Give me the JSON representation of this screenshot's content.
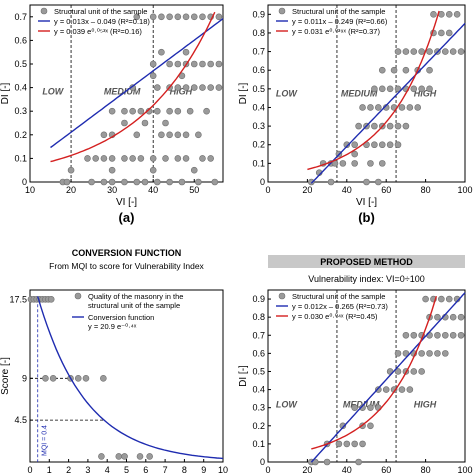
{
  "panels": [
    {
      "id": "a",
      "panel_label": "(a)",
      "xlabel": "VI [-]",
      "ylabel": "DI [-]",
      "xlim": [
        10,
        57
      ],
      "ylim": [
        0,
        0.75
      ],
      "xticks": [
        "10",
        "20",
        "30",
        "40",
        "50"
      ],
      "yticks": [
        "0",
        "0.1",
        "0.2",
        "0.3",
        "0.4",
        "0.5",
        "0.6",
        "0.7"
      ],
      "vlines": [
        20,
        40
      ],
      "zones": [
        {
          "label": "LOW",
          "x": 13,
          "y": 0.37
        },
        {
          "label": "MEDIUM",
          "x": 28,
          "y": 0.37
        },
        {
          "label": "HIGH",
          "x": 44,
          "y": 0.37
        }
      ],
      "legend": {
        "scatter": "Structural unit of the sample",
        "linear": "y = 0.013x – 0.049 (R²=0.18)",
        "exp": "y = 0.039 e⁰·⁰⁵³ˣ (R²=0.16)"
      },
      "linear": {
        "m": 0.013,
        "b": -0.049,
        "x0": 15,
        "x1": 57
      },
      "exp": {
        "a": 0.039,
        "k": 0.053,
        "x0": 15,
        "x1": 55
      },
      "points": [
        [
          18,
          0
        ],
        [
          19,
          0
        ],
        [
          25,
          0
        ],
        [
          28,
          0
        ],
        [
          30,
          0
        ],
        [
          33,
          0
        ],
        [
          36,
          0
        ],
        [
          38,
          0
        ],
        [
          41,
          0
        ],
        [
          44,
          0
        ],
        [
          47,
          0
        ],
        [
          51,
          0
        ],
        [
          55,
          0
        ],
        [
          20,
          0.05
        ],
        [
          30,
          0.05
        ],
        [
          40,
          0.05
        ],
        [
          50,
          0.05
        ],
        [
          24,
          0.1
        ],
        [
          26,
          0.1
        ],
        [
          28,
          0.1
        ],
        [
          30,
          0.1
        ],
        [
          33,
          0.1
        ],
        [
          35,
          0.1
        ],
        [
          37,
          0.1
        ],
        [
          40,
          0.1
        ],
        [
          43,
          0.1
        ],
        [
          46,
          0.1
        ],
        [
          48,
          0.1
        ],
        [
          52,
          0.1
        ],
        [
          54,
          0.1
        ],
        [
          28,
          0.2
        ],
        [
          30,
          0.2
        ],
        [
          36,
          0.2
        ],
        [
          42,
          0.2
        ],
        [
          44,
          0.2
        ],
        [
          46,
          0.2
        ],
        [
          48,
          0.2
        ],
        [
          51,
          0.2
        ],
        [
          33,
          0.25
        ],
        [
          38,
          0.25
        ],
        [
          43,
          0.25
        ],
        [
          30,
          0.3
        ],
        [
          33,
          0.3
        ],
        [
          35,
          0.3
        ],
        [
          37,
          0.3
        ],
        [
          39,
          0.3
        ],
        [
          41,
          0.3
        ],
        [
          44,
          0.3
        ],
        [
          46,
          0.3
        ],
        [
          49,
          0.3
        ],
        [
          53,
          0.3
        ],
        [
          35,
          0.4
        ],
        [
          41,
          0.4
        ],
        [
          44,
          0.4
        ],
        [
          46,
          0.4
        ],
        [
          48,
          0.4
        ],
        [
          50,
          0.4
        ],
        [
          52,
          0.4
        ],
        [
          54,
          0.4
        ],
        [
          56,
          0.4
        ],
        [
          40,
          0.45
        ],
        [
          47,
          0.45
        ],
        [
          40,
          0.5
        ],
        [
          44,
          0.5
        ],
        [
          46,
          0.5
        ],
        [
          48,
          0.5
        ],
        [
          50,
          0.5
        ],
        [
          52,
          0.5
        ],
        [
          54,
          0.5
        ],
        [
          56,
          0.5
        ],
        [
          42,
          0.55
        ],
        [
          48,
          0.55
        ],
        [
          36,
          0.7
        ],
        [
          40,
          0.7
        ],
        [
          42,
          0.7
        ],
        [
          44,
          0.7
        ],
        [
          46,
          0.7
        ],
        [
          48,
          0.7
        ],
        [
          50,
          0.7
        ],
        [
          52,
          0.7
        ],
        [
          54,
          0.7
        ],
        [
          56,
          0.7
        ]
      ]
    },
    {
      "id": "b",
      "panel_label": "(b)",
      "xlabel": "VI [-]",
      "ylabel": "DI [-]",
      "xlim": [
        0,
        100
      ],
      "ylim": [
        0,
        0.95
      ],
      "xticks": [
        "0",
        "20",
        "40",
        "60",
        "80",
        "100"
      ],
      "yticks": [
        "0",
        "0.1",
        "0.2",
        "0.3",
        "0.4",
        "0.5",
        "0.6",
        "0.7",
        "0.8",
        "0.9"
      ],
      "vlines": [
        35,
        65
      ],
      "zones": [
        {
          "label": "LOW",
          "x": 4,
          "y": 0.46
        },
        {
          "label": "MEDIUM",
          "x": 37,
          "y": 0.46
        },
        {
          "label": "HIGH",
          "x": 74,
          "y": 0.46
        }
      ],
      "legend": {
        "scatter": "Structural unit of the sample",
        "linear": "y = 0.011x – 0.249 (R²=0.66)",
        "exp": "y = 0.031 e⁰·⁰³⁹ˣ (R²=0.37)"
      },
      "linear": {
        "m": 0.011,
        "b": -0.249,
        "x0": 22,
        "x1": 100
      },
      "exp": {
        "a": 0.031,
        "k": 0.039,
        "x0": 20,
        "x1": 88
      },
      "points": [
        [
          22,
          0
        ],
        [
          32,
          0
        ],
        [
          50,
          0
        ],
        [
          56,
          0
        ],
        [
          26,
          0.05
        ],
        [
          28,
          0.1
        ],
        [
          32,
          0.1
        ],
        [
          34,
          0.1
        ],
        [
          38,
          0.1
        ],
        [
          44,
          0.1
        ],
        [
          52,
          0.1
        ],
        [
          58,
          0.1
        ],
        [
          36,
          0.15
        ],
        [
          44,
          0.15
        ],
        [
          40,
          0.2
        ],
        [
          44,
          0.2
        ],
        [
          50,
          0.2
        ],
        [
          54,
          0.2
        ],
        [
          58,
          0.2
        ],
        [
          62,
          0.2
        ],
        [
          66,
          0.2
        ],
        [
          46,
          0.3
        ],
        [
          50,
          0.3
        ],
        [
          54,
          0.3
        ],
        [
          58,
          0.3
        ],
        [
          62,
          0.3
        ],
        [
          66,
          0.3
        ],
        [
          70,
          0.3
        ],
        [
          48,
          0.4
        ],
        [
          52,
          0.4
        ],
        [
          56,
          0.4
        ],
        [
          60,
          0.4
        ],
        [
          64,
          0.4
        ],
        [
          68,
          0.4
        ],
        [
          72,
          0.4
        ],
        [
          76,
          0.4
        ],
        [
          54,
          0.5
        ],
        [
          58,
          0.5
        ],
        [
          62,
          0.5
        ],
        [
          66,
          0.5
        ],
        [
          70,
          0.5
        ],
        [
          74,
          0.5
        ],
        [
          78,
          0.5
        ],
        [
          82,
          0.5
        ],
        [
          58,
          0.6
        ],
        [
          64,
          0.6
        ],
        [
          70,
          0.6
        ],
        [
          76,
          0.6
        ],
        [
          82,
          0.6
        ],
        [
          66,
          0.7
        ],
        [
          70,
          0.7
        ],
        [
          74,
          0.7
        ],
        [
          78,
          0.7
        ],
        [
          82,
          0.7
        ],
        [
          86,
          0.7
        ],
        [
          90,
          0.7
        ],
        [
          94,
          0.7
        ],
        [
          98,
          0.7
        ],
        [
          84,
          0.8
        ],
        [
          88,
          0.8
        ],
        [
          92,
          0.8
        ],
        [
          84,
          0.9
        ],
        [
          88,
          0.9
        ],
        [
          92,
          0.9
        ],
        [
          96,
          0.9
        ]
      ]
    },
    {
      "id": "c",
      "title": "CONVERSION FUNCTION",
      "subtitle": "From MQI to score for Vulnerability Index",
      "xlabel": "",
      "ylabel": "Score [-]",
      "xlim": [
        0,
        10
      ],
      "ylim": [
        0,
        18.5
      ],
      "xticks": [
        "0",
        "1",
        "2",
        "3",
        "4",
        "5",
        "6",
        "7",
        "8",
        "9",
        "10"
      ],
      "yticks": [
        {
          "v": 4.5,
          "t": "4.5"
        },
        {
          "v": 9,
          "t": "9"
        },
        {
          "v": 17.5,
          "t": "17.5"
        }
      ],
      "hlines": [
        4.5,
        9,
        17.5
      ],
      "vline": 0.4,
      "vline_label": "MQI = 0.4",
      "legend": {
        "scatter": "Quality of the masonry in the structural unit of the sample",
        "curve_name": "Conversion function",
        "curve_eq": "y = 20.9 e⁻⁰·⁴ˣ"
      },
      "curve": {
        "a": 20.9,
        "k": -0.4,
        "x0": 0.4,
        "x1": 10
      },
      "points": [
        [
          0.05,
          17.5
        ],
        [
          0.2,
          17.5
        ],
        [
          0.35,
          17.5
        ],
        [
          0.5,
          17.5
        ],
        [
          0.65,
          17.5
        ],
        [
          0.8,
          17.5
        ],
        [
          0.95,
          17.5
        ],
        [
          1.1,
          17.5
        ],
        [
          0.8,
          9
        ],
        [
          1.2,
          9
        ],
        [
          2.1,
          9
        ],
        [
          2.5,
          9
        ],
        [
          2.9,
          9
        ],
        [
          3.8,
          9
        ],
        [
          3.7,
          0.6
        ],
        [
          4.6,
          0.6
        ],
        [
          4.9,
          0.6
        ],
        [
          5.7,
          0.6
        ],
        [
          6.2,
          0.6
        ]
      ]
    },
    {
      "id": "d",
      "header": "PROPOSED METHOD",
      "title": "Vulnerability index: VI=0÷100",
      "xlabel": "",
      "ylabel": "DI [-]",
      "xlim": [
        0,
        100
      ],
      "ylim": [
        0,
        0.95
      ],
      "xticks": [
        "0",
        "20",
        "40",
        "60",
        "80",
        "100"
      ],
      "yticks": [
        "0",
        "0.1",
        "0.2",
        "0.3",
        "0.4",
        "0.5",
        "0.6",
        "0.7",
        "0.8",
        "0.9"
      ],
      "vlines": [
        35,
        65
      ],
      "zones": [
        {
          "label": "LOW",
          "x": 4,
          "y": 0.3
        },
        {
          "label": "MEDIUM",
          "x": 38,
          "y": 0.3
        },
        {
          "label": "HIGH",
          "x": 74,
          "y": 0.3
        }
      ],
      "legend": {
        "scatter": "Structural unit of the sample",
        "linear": "y = 0.012x – 0.265 (R²=0.73)",
        "exp": "y = 0.030 e⁰·⁰⁴ˣ (R²=0.45)"
      },
      "linear": {
        "m": 0.012,
        "b": -0.265,
        "x0": 22,
        "x1": 100
      },
      "exp": {
        "a": 0.03,
        "k": 0.04,
        "x0": 22,
        "x1": 90
      },
      "points": [
        [
          22,
          0
        ],
        [
          24,
          0
        ],
        [
          30,
          0
        ],
        [
          46,
          0
        ],
        [
          30,
          0.1
        ],
        [
          36,
          0.1
        ],
        [
          40,
          0.1
        ],
        [
          44,
          0.1
        ],
        [
          48,
          0.1
        ],
        [
          38,
          0.2
        ],
        [
          48,
          0.2
        ],
        [
          52,
          0.2
        ],
        [
          44,
          0.3
        ],
        [
          48,
          0.3
        ],
        [
          52,
          0.3
        ],
        [
          56,
          0.3
        ],
        [
          56,
          0.4
        ],
        [
          60,
          0.4
        ],
        [
          64,
          0.4
        ],
        [
          68,
          0.4
        ],
        [
          72,
          0.4
        ],
        [
          62,
          0.5
        ],
        [
          66,
          0.5
        ],
        [
          70,
          0.5
        ],
        [
          74,
          0.5
        ],
        [
          78,
          0.5
        ],
        [
          66,
          0.6
        ],
        [
          70,
          0.6
        ],
        [
          74,
          0.6
        ],
        [
          78,
          0.6
        ],
        [
          82,
          0.6
        ],
        [
          86,
          0.6
        ],
        [
          90,
          0.6
        ],
        [
          70,
          0.7
        ],
        [
          74,
          0.7
        ],
        [
          78,
          0.7
        ],
        [
          82,
          0.7
        ],
        [
          86,
          0.7
        ],
        [
          90,
          0.7
        ],
        [
          94,
          0.7
        ],
        [
          98,
          0.7
        ],
        [
          82,
          0.8
        ],
        [
          86,
          0.8
        ],
        [
          90,
          0.8
        ],
        [
          94,
          0.8
        ],
        [
          98,
          0.8
        ],
        [
          80,
          0.9
        ],
        [
          84,
          0.9
        ],
        [
          88,
          0.9
        ],
        [
          92,
          0.9
        ],
        [
          96,
          0.9
        ]
      ]
    }
  ],
  "colors": {
    "scatter": "#9a9a9a",
    "scatter_edge": "#6e6e6e",
    "linear": "#1f2cb0",
    "exp": "#d42020",
    "curve": "#1f2cb0",
    "axis": "#000000",
    "header_bg": "#c8c8c8"
  }
}
